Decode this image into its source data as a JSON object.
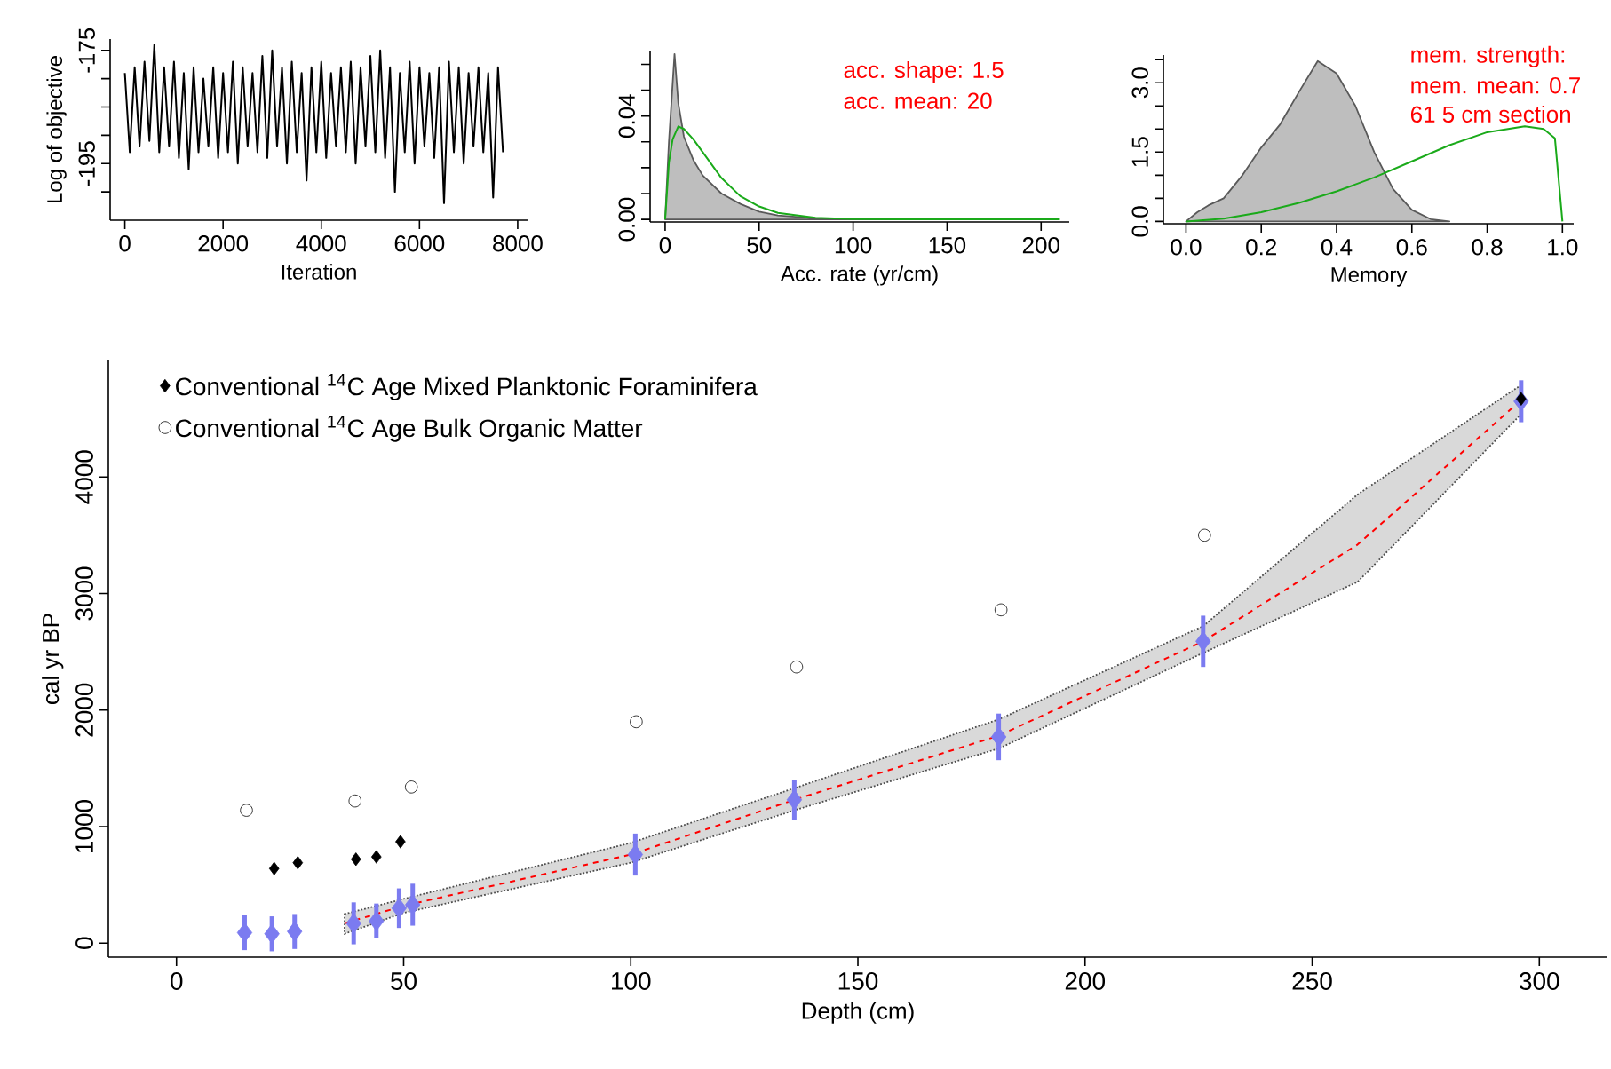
{
  "chart_data": [
    {
      "type": "line",
      "xlabel": "Iteration",
      "ylabel": "Log of objective",
      "xlim": [
        -300,
        8200
      ],
      "ylim": [
        -205,
        -173
      ],
      "xticks": [
        0,
        2000,
        4000,
        6000,
        8000
      ],
      "yticks": [
        -175,
        {
          "value": -180,
          "label": null
        },
        {
          "value": -185,
          "label": null
        },
        {
          "value": -190,
          "label": null
        },
        -195,
        {
          "value": -200,
          "label": null
        }
      ],
      "series": [
        {
          "color": "#000000",
          "x": [
            0,
            100,
            200,
            300,
            400,
            500,
            600,
            700,
            800,
            900,
            1000,
            1100,
            1200,
            1300,
            1400,
            1500,
            1600,
            1700,
            1800,
            1900,
            2000,
            2100,
            2200,
            2300,
            2400,
            2500,
            2600,
            2700,
            2800,
            2900,
            3000,
            3100,
            3200,
            3300,
            3400,
            3500,
            3600,
            3700,
            3800,
            3900,
            4000,
            4100,
            4200,
            4300,
            4400,
            4500,
            4600,
            4700,
            4800,
            4900,
            5000,
            5100,
            5200,
            5300,
            5400,
            5500,
            5600,
            5700,
            5800,
            5900,
            6000,
            6100,
            6200,
            6300,
            6400,
            6500,
            6600,
            6700,
            6800,
            6900,
            7000,
            7100,
            7200,
            7300,
            7400,
            7500,
            7600,
            7700
          ],
          "values": [
            -179,
            -193,
            -178,
            -192,
            -177,
            -191,
            -174,
            -193,
            -178,
            -192,
            -177,
            -194,
            -179,
            -196,
            -178,
            -193,
            -180,
            -192,
            -178,
            -194,
            -179,
            -193,
            -177,
            -195,
            -178,
            -192,
            -179,
            -193,
            -176,
            -194,
            -175,
            -192,
            -178,
            -195,
            -177,
            -193,
            -179,
            -198,
            -178,
            -193,
            -177,
            -194,
            -179,
            -192,
            -178,
            -193,
            -177,
            -195,
            -178,
            -192,
            -176,
            -193,
            -175,
            -194,
            -178,
            -200,
            -179,
            -193,
            -177,
            -195,
            -178,
            -192,
            -179,
            -194,
            -178,
            -202,
            -177,
            -193,
            -178,
            -195,
            -179,
            -192,
            -178,
            -193,
            -179,
            -201,
            -178,
            -193
          ]
        }
      ]
    },
    {
      "type": "area",
      "xlabel": "Acc. rate (yr/cm)",
      "xlim": [
        -8,
        215
      ],
      "ylim": [
        -0.001,
        0.065
      ],
      "xticks": [
        0,
        50,
        100,
        150,
        200
      ],
      "yticks": [
        {
          "value": 0,
          "label": "0.00"
        },
        {
          "value": 0.01,
          "label": null
        },
        {
          "value": 0.02,
          "label": null
        },
        {
          "value": 0.03,
          "label": null
        },
        {
          "value": 0.04,
          "label": "0.04"
        },
        {
          "value": 0.05,
          "label": null
        },
        {
          "value": 0.06,
          "label": null
        }
      ],
      "annotations": [
        "acc. shape: 1.5",
        "acc. mean: 20"
      ],
      "series": [
        {
          "type": "area",
          "color": "#bebebe",
          "x": [
            0,
            2,
            5,
            7,
            10,
            15,
            20,
            30,
            40,
            50,
            60,
            80,
            100,
            130
          ],
          "values": [
            0,
            0.03,
            0.064,
            0.045,
            0.032,
            0.023,
            0.017,
            0.01,
            0.006,
            0.003,
            0.0015,
            0.0004,
            0.0001,
            0
          ]
        },
        {
          "type": "line",
          "color": "#1aaa1a",
          "x": [
            0,
            2,
            4,
            7,
            10,
            15,
            20,
            30,
            40,
            50,
            60,
            80,
            100,
            150,
            210
          ],
          "values": [
            0,
            0.022,
            0.031,
            0.036,
            0.035,
            0.031,
            0.026,
            0.016,
            0.009,
            0.005,
            0.0025,
            0.0006,
            0.0001,
            0,
            0
          ]
        }
      ]
    },
    {
      "type": "area",
      "xlabel": "Memory",
      "xlim": [
        -0.06,
        1.03
      ],
      "ylim": [
        -0.05,
        3.6
      ],
      "xticks": [
        {
          "value": 0,
          "label": "0.0"
        },
        {
          "value": 0.2,
          "label": "0.2"
        },
        {
          "value": 0.4,
          "label": "0.4"
        },
        {
          "value": 0.6,
          "label": "0.6"
        },
        {
          "value": 0.8,
          "label": "0.8"
        },
        {
          "value": 1.0,
          "label": "1.0"
        }
      ],
      "yticks": [
        {
          "value": 0,
          "label": "0.0"
        },
        {
          "value": 0.5,
          "label": null
        },
        {
          "value": 1.0,
          "label": null
        },
        1.5,
        {
          "value": 2.0,
          "label": null
        },
        {
          "value": 2.5,
          "label": null
        },
        {
          "value": 3.0,
          "label": "3.0"
        },
        {
          "value": 3.5,
          "label": null
        }
      ],
      "annotations": [
        "mem. strength:",
        "mem. mean: 0.7",
        "61 5 cm section"
      ],
      "series": [
        {
          "type": "area",
          "color": "#bebebe",
          "x": [
            0,
            0.03,
            0.06,
            0.1,
            0.15,
            0.2,
            0.25,
            0.3,
            0.35,
            0.4,
            0.45,
            0.5,
            0.55,
            0.6,
            0.65,
            0.7
          ],
          "values": [
            0,
            0.2,
            0.35,
            0.5,
            1.0,
            1.6,
            2.1,
            2.8,
            3.47,
            3.2,
            2.5,
            1.5,
            0.7,
            0.25,
            0.05,
            0
          ]
        },
        {
          "type": "line",
          "color": "#1aaa1a",
          "x": [
            0,
            0.1,
            0.2,
            0.3,
            0.4,
            0.5,
            0.6,
            0.7,
            0.8,
            0.9,
            0.95,
            0.98,
            1.0
          ],
          "values": [
            0,
            0.06,
            0.2,
            0.4,
            0.65,
            0.95,
            1.3,
            1.65,
            1.93,
            2.06,
            2.0,
            1.8,
            0
          ]
        }
      ]
    },
    {
      "type": "scatter",
      "xlabel": "Depth (cm)",
      "ylabel": "cal yr BP",
      "xlim": [
        -15,
        315
      ],
      "ylim": [
        -120,
        5000
      ],
      "xticks": [
        0,
        50,
        100,
        150,
        200,
        250,
        300
      ],
      "yticks": [
        0,
        1000,
        2000,
        3000,
        4000
      ],
      "legend": "top left",
      "series": [
        {
          "type": "line",
          "color": "#ff0000",
          "line_style": "dashed",
          "x": [
            37,
            50,
            100,
            136,
            181,
            226,
            260,
            296
          ],
          "values": [
            170,
            320,
            760,
            1230,
            1780,
            2590,
            3420,
            4660
          ],
          "lower": [
            80,
            260,
            690,
            1140,
            1670,
            2490,
            3100,
            4540
          ],
          "upper": [
            250,
            380,
            860,
            1330,
            1920,
            2720,
            3850,
            4790
          ]
        },
        {
          "type": "scatter",
          "color": "#7b7bf0",
          "marker": "diamond",
          "x": [
            15,
            21,
            26,
            39,
            44,
            49,
            52,
            101,
            136,
            181,
            226,
            296
          ],
          "values": [
            90,
            80,
            100,
            170,
            190,
            300,
            330,
            760,
            1230,
            1770,
            2590,
            4650
          ],
          "errors": [
            150,
            150,
            150,
            180,
            150,
            170,
            180,
            180,
            170,
            200,
            220,
            180
          ]
        },
        {
          "type": "scatter",
          "name": "Conventional $^{14}$C Age Mixed Planktonic Foraminifera",
          "color": "#000000",
          "marker": "diamond",
          "x": [
            21.5,
            26.7,
            39.5,
            44,
            49.3,
            296
          ],
          "values": [
            640,
            690,
            720,
            740,
            870,
            4670
          ]
        },
        {
          "type": "scatter",
          "name": "Conventional $^{14}$C Age Bulk Organic Matter",
          "color": "#000000",
          "marker": "circle",
          "x": [
            15.4,
            39.3,
            51.7,
            101.2,
            136.5,
            181.5,
            226.3
          ],
          "values": [
            1140,
            1220,
            1340,
            1900,
            2370,
            2860,
            3500
          ]
        }
      ]
    }
  ]
}
